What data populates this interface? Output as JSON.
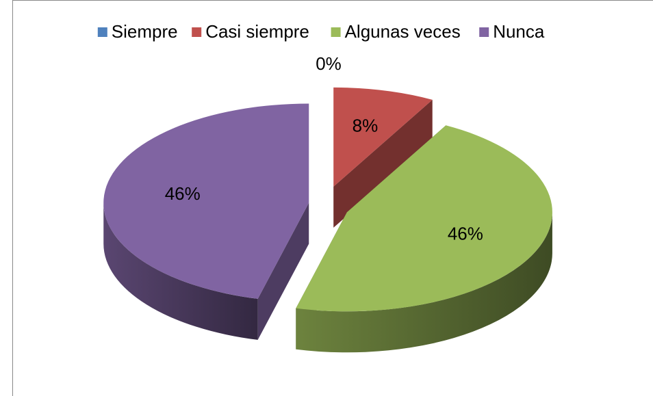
{
  "chart_data": {
    "type": "pie",
    "categories": [
      "Siempre",
      "Casi siempre",
      "Algunas veces",
      "Nunca"
    ],
    "values": [
      0,
      8,
      46,
      46
    ],
    "value_labels": [
      "0%",
      "8%",
      "46%",
      "46%"
    ],
    "colors": [
      "#4f81bd",
      "#c0504d",
      "#9bbb59",
      "#8064a2"
    ],
    "legend": "top"
  }
}
